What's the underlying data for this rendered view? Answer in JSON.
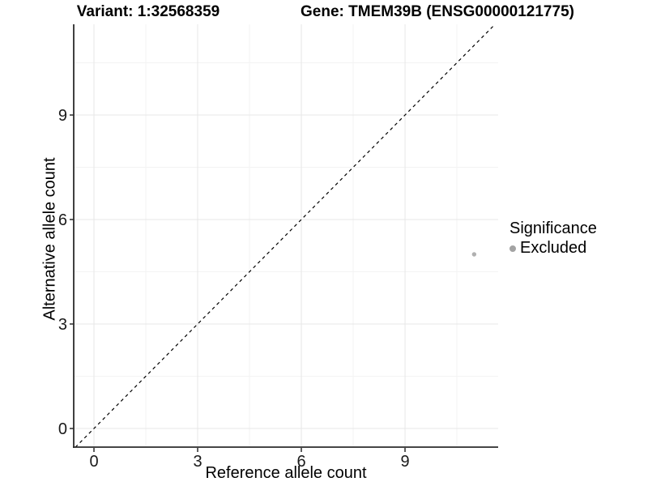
{
  "chart_data": {
    "type": "scatter",
    "title_left": "Variant: 1:32568359",
    "title_right": "Gene: TMEM39B (ENSG00000121775)",
    "xlabel": "Reference allele count",
    "ylabel": "Alternative allele count",
    "x_ticks": [
      0,
      3,
      6,
      9
    ],
    "y_ticks": [
      0,
      3,
      6,
      9
    ],
    "xlim": [
      -0.59,
      11.7
    ],
    "ylim": [
      -0.54,
      11.61
    ],
    "minor_step": 1.5,
    "grid": true,
    "points": [
      {
        "x": 11,
        "y": 5,
        "series": "Excluded"
      }
    ],
    "point_style": {
      "color": "#b0b0b0",
      "radius": 2.7
    },
    "reference_line": {
      "type": "identity",
      "style": "dashed",
      "color": "#000000"
    },
    "legend": {
      "title": "Significance",
      "position": "right",
      "entries": [
        {
          "label": "Excluded",
          "color": "#a3a3a3"
        }
      ]
    },
    "colors": {
      "grid_major": "#e7e7e7",
      "grid_minor": "#f3f3f3",
      "axis": "#2b2b2b",
      "tick_text": "#1a1a1a",
      "background": "#ffffff"
    }
  }
}
